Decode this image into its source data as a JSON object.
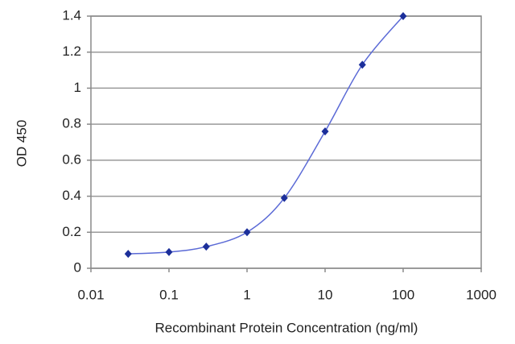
{
  "chart_data": {
    "type": "line",
    "x_label": "Recombinant Protein Concentration (ng/ml)",
    "y_label": "OD 450",
    "x": [
      0.03,
      0.1,
      0.3,
      1,
      3,
      10,
      30,
      100
    ],
    "series": [
      {
        "color": "#1c2f9a",
        "line_color": "#5b6ad6",
        "values": [
          0.08,
          0.09,
          0.12,
          0.2,
          0.39,
          0.76,
          1.13,
          1.4
        ]
      }
    ],
    "xscale": "log",
    "xlim": [
      0.01,
      1000
    ],
    "xticks": [
      0.01,
      0.1,
      1,
      10,
      100,
      1000
    ],
    "ylim": [
      0,
      1.4
    ],
    "yticks": [
      0,
      0.2,
      0.4,
      0.6,
      0.8,
      1,
      1.2,
      1.4
    ],
    "grid": true
  }
}
